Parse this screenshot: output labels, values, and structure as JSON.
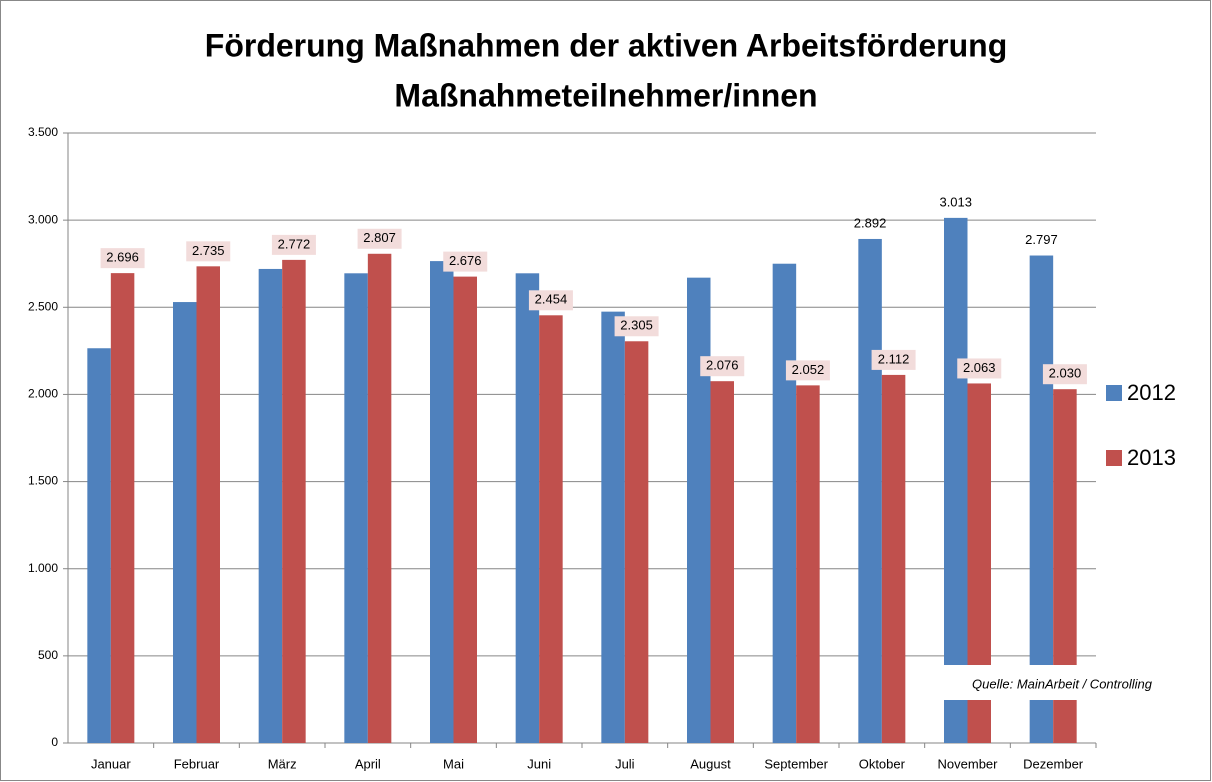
{
  "chart_data": {
    "type": "bar",
    "title": "Förderung Maßnahmen der aktiven Arbeitsförderung",
    "subtitle": "Maßnahmeteilnehmer/innen",
    "categories": [
      "Januar",
      "Februar",
      "März",
      "April",
      "Mai",
      "Juni",
      "Juli",
      "August",
      "September",
      "Oktober",
      "November",
      "Dezember"
    ],
    "series": [
      {
        "name": "2012",
        "color": "#4f81bd",
        "values": [
          2265,
          2530,
          2720,
          2695,
          2765,
          2695,
          2475,
          2670,
          2750,
          2892,
          3013,
          2797
        ],
        "value_labels": [
          null,
          null,
          null,
          null,
          null,
          null,
          null,
          null,
          null,
          "2.892",
          "3.013",
          "2.797"
        ]
      },
      {
        "name": "2013",
        "color": "#c0504d",
        "values": [
          2696,
          2735,
          2772,
          2807,
          2676,
          2454,
          2305,
          2076,
          2052,
          2112,
          2063,
          2030
        ],
        "value_labels": [
          "2.696",
          "2.735",
          "2.772",
          "2.807",
          "2.676",
          "2.454",
          "2.305",
          "2.076",
          "2.052",
          "2.112",
          "2.063",
          "2.030"
        ]
      }
    ],
    "ylim": [
      0,
      3500
    ],
    "yticks": [
      0,
      500,
      {
        "value": 1000,
        "label": "1.000"
      },
      {
        "value": 1500,
        "label": "1.500"
      },
      {
        "value": 2000,
        "label": "2.000"
      },
      {
        "value": 2500,
        "label": "2.500"
      },
      {
        "value": 3000,
        "label": "3.000"
      },
      {
        "value": 3500,
        "label": "3.500"
      }
    ],
    "grid": true,
    "legend": "right",
    "note": "Quelle: MainArbeit / Controlling"
  }
}
